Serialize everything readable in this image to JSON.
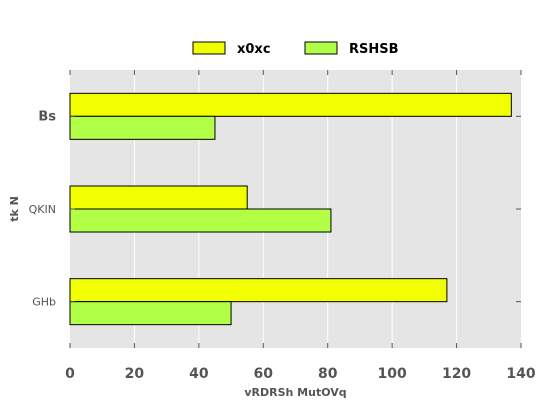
{
  "chart_data": {
    "type": "bar",
    "orientation": "horizontal",
    "categories": [
      "Bs",
      "QKIN",
      "GHb"
    ],
    "series": [
      {
        "name": "x0xc",
        "values": [
          137,
          55,
          117
        ],
        "color": "#f2ff00"
      },
      {
        "name": "RSHSB",
        "values": [
          45,
          81,
          50
        ],
        "color": "#b2ff47"
      }
    ],
    "xlabel": "vRDRSh  MutOVq",
    "ylabel": "tk N",
    "xlim": [
      0,
      140
    ],
    "xticks": [
      "0",
      "20",
      "40",
      "60",
      "80",
      "100",
      "120",
      "140"
    ],
    "grid": true,
    "legend": "top-center",
    "background_color": "#e5e5e5",
    "grid_color": "#ffffff"
  }
}
